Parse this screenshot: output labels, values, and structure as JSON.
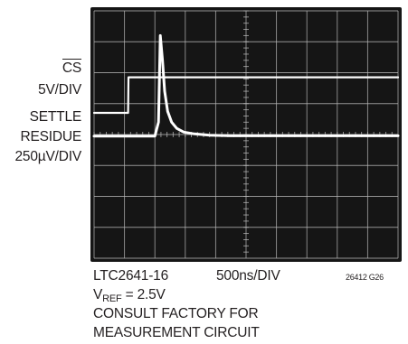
{
  "chart_data": {
    "type": "line",
    "title": "",
    "channels": [
      {
        "name": "CS",
        "scale_label": "5V/DIV"
      },
      {
        "name": "SETTLE RESIDUE",
        "scale_label": "250µV/DIV"
      }
    ],
    "x_label": "500ns/DIV",
    "grid": true,
    "divisions": {
      "x": 10,
      "y": 8
    },
    "x_range_div": [
      0,
      10
    ],
    "y_range_div": [
      0,
      8
    ],
    "series": [
      {
        "name": "CS",
        "x_div": [
          0,
          1.12,
          1.13,
          10
        ],
        "y_div": [
          4.7,
          4.7,
          5.85,
          5.85
        ]
      },
      {
        "name": "SETTLE RESIDUE",
        "x_div": [
          0,
          2.0,
          2.12,
          2.18,
          2.25,
          2.32,
          2.42,
          2.55,
          2.72,
          2.95,
          3.3,
          3.8,
          4.5,
          10
        ],
        "y_div": [
          3.95,
          3.95,
          4.4,
          7.2,
          6.4,
          5.4,
          4.75,
          4.4,
          4.2,
          4.08,
          4.02,
          3.98,
          3.96,
          3.96
        ]
      }
    ]
  },
  "labels": {
    "cs_name": "CS",
    "cs_scale": "5V/DIV",
    "settle_1": "SETTLE",
    "settle_2": "RESIDUE",
    "settle_3": "250µV/DIV"
  },
  "footer": {
    "model": "LTC2641-16",
    "timebase": "500ns/DIV",
    "code": "26412 G26",
    "vref_main": "V",
    "vref_sub": "REF",
    "vref_value": " = 2.5V",
    "note_line1": "CONSULT FACTORY FOR",
    "note_line2": "MEASUREMENT CIRCUIT"
  },
  "colors": {
    "screen": "#151515",
    "grid": "#bdbdbd",
    "trace": "#ffffff",
    "text": "#231f20"
  }
}
